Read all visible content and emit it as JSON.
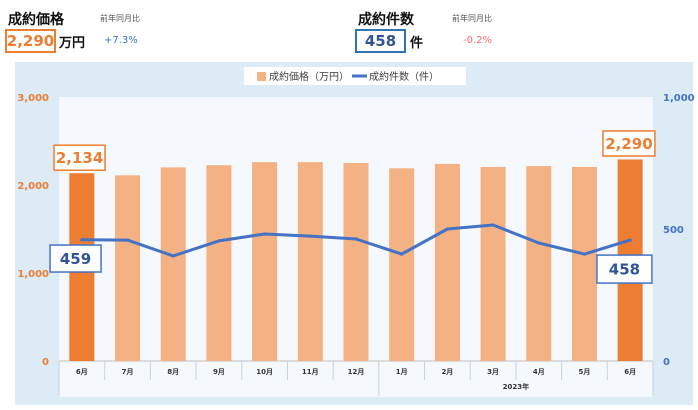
{
  "summary": {
    "price": {
      "label": "成約価格",
      "yoy_label": "前年同月比",
      "value": "2,290",
      "unit": "万円",
      "yoy": "+7.3%"
    },
    "count": {
      "label": "成約件数",
      "yoy_label": "前年同月比",
      "value": "458",
      "unit": "件",
      "yoy": "-0.2%"
    }
  },
  "colors": {
    "price_accent": "#ED7D31",
    "price_bar": "#F4B183",
    "count_accent": "#2F5597",
    "count_line": "#4472C4",
    "yoy_up": "#4472C4",
    "yoy_down": "#FF6B6B",
    "chart_background": "#DDEBF7",
    "plot_background": "#F5F9FD"
  },
  "chart_data": {
    "type": "bar",
    "title": "",
    "xlabel": "",
    "ylabel": "",
    "categories": [
      "6月",
      "7月",
      "8月",
      "9月",
      "10月",
      "11月",
      "12月",
      "1月",
      "2月",
      "3月",
      "4月",
      "5月",
      "6月"
    ],
    "category_group": {
      "label": "2023年",
      "from_index": 7,
      "to_index": 12
    },
    "series": [
      {
        "name": "成約価格（万円）",
        "type": "bar",
        "axis": "left",
        "values": [
          2134,
          2110,
          2200,
          2225,
          2260,
          2260,
          2250,
          2190,
          2240,
          2205,
          2215,
          2205,
          2290
        ],
        "highlight_indices": [
          0,
          12
        ]
      },
      {
        "name": "成約件数（件）",
        "type": "line",
        "axis": "right",
        "values": [
          459,
          458,
          398,
          455,
          481,
          473,
          462,
          405,
          500,
          515,
          447,
          405,
          458
        ]
      }
    ],
    "left_axis": {
      "min": 0,
      "max": 3000,
      "ticks": [
        0,
        1000,
        2000,
        3000
      ],
      "tick_labels": [
        "0",
        "1,000",
        "2,000",
        "3,000"
      ]
    },
    "right_axis": {
      "min": 0,
      "max": 1000,
      "ticks": [
        0,
        500,
        1000
      ],
      "tick_labels": [
        "0",
        "500",
        "1,000"
      ]
    },
    "annotations": [
      {
        "series": 0,
        "index": 0,
        "text": "2,134"
      },
      {
        "series": 0,
        "index": 12,
        "text": "2,290"
      },
      {
        "series": 1,
        "index": 0,
        "text": "459"
      },
      {
        "series": 1,
        "index": 12,
        "text": "458"
      }
    ],
    "grid": false,
    "legend": "top"
  }
}
